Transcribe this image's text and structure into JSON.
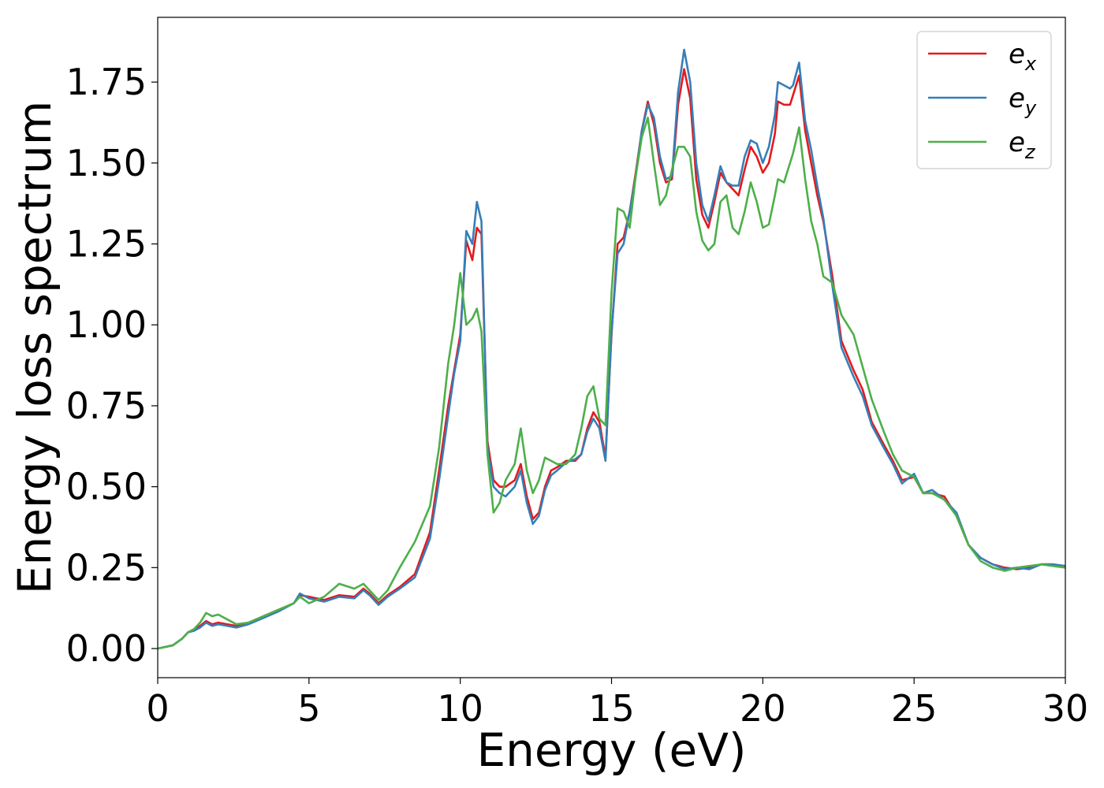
{
  "chart_data": {
    "type": "line",
    "xlabel": "Energy (eV)",
    "ylabel": "Energy loss spectrum",
    "xlim": [
      0,
      30
    ],
    "ylim": [
      -0.09,
      1.95
    ],
    "xticks": [
      0,
      5,
      10,
      15,
      20,
      25,
      30
    ],
    "xtick_labels": [
      "0",
      "5",
      "10",
      "15",
      "20",
      "25",
      "30"
    ],
    "yticks": [
      0.0,
      0.25,
      0.5,
      0.75,
      1.0,
      1.25,
      1.5,
      1.75
    ],
    "ytick_labels": [
      "0.00",
      "0.25",
      "0.50",
      "0.75",
      "1.00",
      "1.25",
      "1.50",
      "1.75"
    ],
    "grid": false,
    "legend_position": "top-right",
    "series": [
      {
        "name": "e",
        "subscript": "x",
        "color": "#e41a1c",
        "x": [
          0,
          0.5,
          0.8,
          1.0,
          1.2,
          1.4,
          1.6,
          1.8,
          2.0,
          2.3,
          2.6,
          3.0,
          3.5,
          4.0,
          4.5,
          4.7,
          5.0,
          5.5,
          6.0,
          6.5,
          6.8,
          7.0,
          7.3,
          7.6,
          8.0,
          8.5,
          9.0,
          9.3,
          9.6,
          9.8,
          10.0,
          10.2,
          10.4,
          10.55,
          10.7,
          10.9,
          11.1,
          11.3,
          11.5,
          11.8,
          12.0,
          12.2,
          12.4,
          12.6,
          12.8,
          13.0,
          13.2,
          13.5,
          13.8,
          14.0,
          14.2,
          14.4,
          14.6,
          14.8,
          15.0,
          15.2,
          15.4,
          15.6,
          15.8,
          16.0,
          16.2,
          16.4,
          16.6,
          16.8,
          17.0,
          17.2,
          17.4,
          17.6,
          17.8,
          18.0,
          18.2,
          18.4,
          18.6,
          18.8,
          19.0,
          19.2,
          19.4,
          19.6,
          19.8,
          20.0,
          20.2,
          20.4,
          20.5,
          20.7,
          20.9,
          21.0,
          21.2,
          21.4,
          21.6,
          21.8,
          22.0,
          22.3,
          22.6,
          23.0,
          23.3,
          23.6,
          24.0,
          24.3,
          24.6,
          25.0,
          25.3,
          25.6,
          26.0,
          26.4,
          26.8,
          27.2,
          27.6,
          28.0,
          28.4,
          28.8,
          29.2,
          29.6,
          30.0
        ],
        "values": [
          0.0,
          0.01,
          0.03,
          0.05,
          0.06,
          0.07,
          0.085,
          0.075,
          0.08,
          0.075,
          0.07,
          0.08,
          0.1,
          0.12,
          0.14,
          0.165,
          0.16,
          0.15,
          0.165,
          0.16,
          0.185,
          0.17,
          0.14,
          0.165,
          0.19,
          0.23,
          0.36,
          0.55,
          0.75,
          0.86,
          0.97,
          1.26,
          1.2,
          1.3,
          1.28,
          0.64,
          0.52,
          0.5,
          0.5,
          0.52,
          0.57,
          0.47,
          0.4,
          0.42,
          0.5,
          0.55,
          0.56,
          0.58,
          0.58,
          0.6,
          0.68,
          0.73,
          0.7,
          0.59,
          0.97,
          1.25,
          1.27,
          1.35,
          1.47,
          1.6,
          1.69,
          1.62,
          1.5,
          1.44,
          1.45,
          1.68,
          1.79,
          1.7,
          1.45,
          1.34,
          1.3,
          1.38,
          1.47,
          1.44,
          1.42,
          1.4,
          1.48,
          1.55,
          1.52,
          1.47,
          1.5,
          1.59,
          1.69,
          1.68,
          1.68,
          1.71,
          1.77,
          1.6,
          1.5,
          1.4,
          1.32,
          1.15,
          0.95,
          0.86,
          0.8,
          0.7,
          0.63,
          0.58,
          0.52,
          0.53,
          0.48,
          0.48,
          0.47,
          0.41,
          0.32,
          0.28,
          0.26,
          0.25,
          0.245,
          0.25,
          0.26,
          0.26,
          0.255
        ]
      },
      {
        "name": "e",
        "subscript": "y",
        "color": "#377eb8",
        "x": [
          0,
          0.5,
          0.8,
          1.0,
          1.2,
          1.4,
          1.6,
          1.8,
          2.0,
          2.3,
          2.6,
          3.0,
          3.5,
          4.0,
          4.5,
          4.7,
          5.0,
          5.5,
          6.0,
          6.5,
          6.8,
          7.0,
          7.3,
          7.6,
          8.0,
          8.5,
          9.0,
          9.3,
          9.6,
          9.8,
          10.0,
          10.2,
          10.4,
          10.55,
          10.7,
          10.9,
          11.1,
          11.3,
          11.5,
          11.8,
          12.0,
          12.2,
          12.4,
          12.6,
          12.8,
          13.0,
          13.2,
          13.5,
          13.8,
          14.0,
          14.2,
          14.4,
          14.6,
          14.8,
          15.0,
          15.2,
          15.4,
          15.6,
          15.8,
          16.0,
          16.2,
          16.4,
          16.6,
          16.8,
          17.0,
          17.2,
          17.4,
          17.6,
          17.8,
          18.0,
          18.2,
          18.4,
          18.6,
          18.8,
          19.0,
          19.2,
          19.4,
          19.6,
          19.8,
          20.0,
          20.2,
          20.4,
          20.5,
          20.7,
          20.9,
          21.0,
          21.2,
          21.4,
          21.6,
          21.8,
          22.0,
          22.3,
          22.6,
          23.0,
          23.3,
          23.6,
          24.0,
          24.3,
          24.6,
          25.0,
          25.3,
          25.6,
          26.0,
          26.4,
          26.8,
          27.2,
          27.6,
          28.0,
          28.4,
          28.8,
          29.2,
          29.6,
          30.0
        ],
        "values": [
          0.0,
          0.01,
          0.03,
          0.05,
          0.055,
          0.065,
          0.08,
          0.07,
          0.075,
          0.07,
          0.065,
          0.075,
          0.095,
          0.115,
          0.14,
          0.17,
          0.155,
          0.145,
          0.16,
          0.155,
          0.18,
          0.165,
          0.135,
          0.16,
          0.185,
          0.22,
          0.34,
          0.52,
          0.72,
          0.85,
          0.95,
          1.29,
          1.25,
          1.38,
          1.32,
          0.62,
          0.5,
          0.48,
          0.47,
          0.5,
          0.55,
          0.45,
          0.385,
          0.41,
          0.49,
          0.535,
          0.55,
          0.575,
          0.585,
          0.6,
          0.67,
          0.71,
          0.68,
          0.58,
          0.98,
          1.22,
          1.25,
          1.35,
          1.46,
          1.6,
          1.68,
          1.64,
          1.52,
          1.45,
          1.46,
          1.72,
          1.85,
          1.75,
          1.5,
          1.37,
          1.32,
          1.4,
          1.49,
          1.44,
          1.43,
          1.43,
          1.52,
          1.57,
          1.56,
          1.5,
          1.55,
          1.65,
          1.75,
          1.74,
          1.73,
          1.74,
          1.81,
          1.63,
          1.54,
          1.43,
          1.33,
          1.12,
          0.93,
          0.84,
          0.78,
          0.69,
          0.62,
          0.57,
          0.51,
          0.54,
          0.48,
          0.49,
          0.46,
          0.42,
          0.32,
          0.28,
          0.26,
          0.245,
          0.25,
          0.245,
          0.26,
          0.26,
          0.255
        ]
      },
      {
        "name": "e",
        "subscript": "z",
        "color": "#4daf4a",
        "x": [
          0,
          0.5,
          0.8,
          1.0,
          1.2,
          1.4,
          1.6,
          1.8,
          2.0,
          2.3,
          2.6,
          3.0,
          3.5,
          4.0,
          4.5,
          4.7,
          5.0,
          5.5,
          6.0,
          6.5,
          6.8,
          7.0,
          7.3,
          7.6,
          8.0,
          8.5,
          9.0,
          9.3,
          9.6,
          9.8,
          10.0,
          10.2,
          10.4,
          10.55,
          10.7,
          10.9,
          11.1,
          11.3,
          11.5,
          11.8,
          12.0,
          12.2,
          12.4,
          12.6,
          12.8,
          13.0,
          13.2,
          13.5,
          13.8,
          14.0,
          14.2,
          14.4,
          14.6,
          14.8,
          15.0,
          15.2,
          15.4,
          15.6,
          15.8,
          16.0,
          16.2,
          16.4,
          16.6,
          16.8,
          17.0,
          17.2,
          17.4,
          17.6,
          17.8,
          18.0,
          18.2,
          18.4,
          18.6,
          18.8,
          19.0,
          19.2,
          19.4,
          19.6,
          19.8,
          20.0,
          20.2,
          20.4,
          20.5,
          20.7,
          20.9,
          21.0,
          21.2,
          21.4,
          21.6,
          21.8,
          22.0,
          22.3,
          22.6,
          23.0,
          23.3,
          23.6,
          24.0,
          24.3,
          24.6,
          25.0,
          25.3,
          25.6,
          26.0,
          26.4,
          26.8,
          27.2,
          27.6,
          28.0,
          28.4,
          28.8,
          29.2,
          29.6,
          30.0
        ],
        "values": [
          0.0,
          0.01,
          0.03,
          0.05,
          0.06,
          0.08,
          0.11,
          0.1,
          0.105,
          0.09,
          0.075,
          0.08,
          0.1,
          0.12,
          0.14,
          0.16,
          0.14,
          0.16,
          0.2,
          0.185,
          0.2,
          0.18,
          0.15,
          0.18,
          0.25,
          0.33,
          0.44,
          0.62,
          0.88,
          1.0,
          1.16,
          1.0,
          1.02,
          1.05,
          0.98,
          0.6,
          0.42,
          0.45,
          0.52,
          0.57,
          0.68,
          0.55,
          0.48,
          0.52,
          0.59,
          0.58,
          0.57,
          0.57,
          0.6,
          0.68,
          0.78,
          0.81,
          0.71,
          0.69,
          1.1,
          1.36,
          1.35,
          1.3,
          1.46,
          1.58,
          1.64,
          1.5,
          1.37,
          1.4,
          1.48,
          1.55,
          1.55,
          1.52,
          1.35,
          1.26,
          1.23,
          1.25,
          1.38,
          1.4,
          1.3,
          1.28,
          1.35,
          1.44,
          1.38,
          1.3,
          1.31,
          1.4,
          1.45,
          1.44,
          1.5,
          1.53,
          1.61,
          1.45,
          1.32,
          1.25,
          1.15,
          1.13,
          1.03,
          0.97,
          0.87,
          0.77,
          0.67,
          0.6,
          0.55,
          0.53,
          0.48,
          0.48,
          0.46,
          0.41,
          0.32,
          0.27,
          0.25,
          0.24,
          0.25,
          0.255,
          0.26,
          0.255,
          0.25
        ]
      }
    ]
  }
}
